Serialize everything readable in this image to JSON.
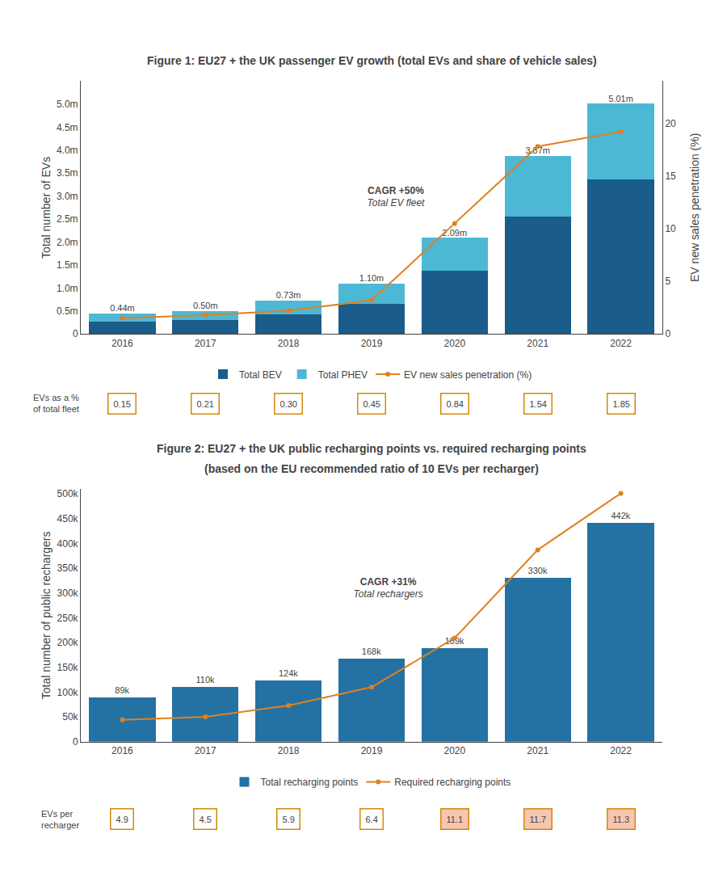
{
  "chart_data": [
    {
      "type": "bar",
      "title": "Figure 1: EU27 + the UK passenger EV growth (total EVs and share of vehicle sales)",
      "categories": [
        "2016",
        "2017",
        "2018",
        "2019",
        "2020",
        "2021",
        "2022"
      ],
      "stacked": true,
      "grid": false,
      "legend": "bottom",
      "ylabel": "Total number of EVs",
      "y2label": "EV new sales penetration (%)",
      "ylim": [
        0,
        5.5
      ],
      "yticks": [
        0,
        {
          "value": 0.5,
          "label": "0.5m"
        },
        {
          "value": 1.0,
          "label": "1.0m"
        },
        {
          "value": 1.5,
          "label": "1.5m"
        },
        {
          "value": 2.0,
          "label": "2.0m"
        },
        {
          "value": 2.5,
          "label": "2.5m"
        },
        {
          "value": 3.0,
          "label": "3.0m"
        },
        {
          "value": 3.5,
          "label": "3.5m"
        },
        {
          "value": 4.0,
          "label": "4.0m"
        },
        {
          "value": 4.5,
          "label": "4.5m"
        },
        {
          "value": 5.0,
          "label": "5.0m"
        }
      ],
      "y2lim": [
        0,
        24
      ],
      "y2ticks": [
        0,
        5,
        10,
        15,
        20
      ],
      "series": [
        {
          "name": "Total BEV",
          "type": "bar",
          "color": "#1a5c8a",
          "values": [
            0.26,
            0.3,
            0.43,
            0.65,
            1.37,
            2.55,
            3.36
          ]
        },
        {
          "name": "Total PHEV",
          "type": "bar",
          "color": "#4db8d4",
          "values": [
            0.18,
            0.2,
            0.3,
            0.45,
            0.72,
            1.32,
            1.65
          ]
        },
        {
          "name": "EV new sales penetration (%)",
          "type": "line",
          "marker": "circle",
          "axis": "y2",
          "color": "#e08020",
          "values": [
            1.5,
            1.8,
            2.2,
            3.2,
            10.5,
            17.8,
            19.2
          ]
        }
      ],
      "totals": [
        0.44,
        0.5,
        0.73,
        1.1,
        2.09,
        3.87,
        5.01
      ],
      "total_labels": [
        "0.44m",
        "0.50m",
        "0.73m",
        "1.10m",
        "2.09m",
        "3.87m",
        "5.01m"
      ],
      "annotations": [
        {
          "text": "CAGR +50%"
        },
        {
          "text": "Total EV fleet"
        }
      ],
      "row": {
        "label": "EVs as a %\nof total fleet",
        "values": [
          0.15,
          0.21,
          0.3,
          0.45,
          0.84,
          1.54,
          1.85
        ],
        "value_labels": [
          "0.15",
          "0.21",
          "0.30",
          "0.45",
          "0.84",
          "1.54",
          "1.85"
        ],
        "color": "#d4880a",
        "colors": [
          "#ffffff",
          "#ffffff",
          "#ffffff",
          "#ffffff",
          "#ffffff",
          "#ffffff",
          "#ffffff"
        ]
      }
    },
    {
      "type": "bar",
      "title": "Figure 2: EU27 + the UK public recharging points vs. required recharging points",
      "subtitle": "(based on the EU recommended ratio of 10 EVs per recharger)",
      "categories": [
        "2016",
        "2017",
        "2018",
        "2019",
        "2020",
        "2021",
        "2022"
      ],
      "grid": false,
      "legend": "bottom",
      "data_labels": true,
      "ylabel": "Total number of public rechargers",
      "ylim": [
        0,
        510000
      ],
      "yticks": [
        0,
        {
          "value": 50000,
          "label": "50k"
        },
        {
          "value": 100000,
          "label": "100k"
        },
        {
          "value": 150000,
          "label": "150k"
        },
        {
          "value": 200000,
          "label": "200k"
        },
        {
          "value": 250000,
          "label": "250k"
        },
        {
          "value": 300000,
          "label": "300k"
        },
        {
          "value": 350000,
          "label": "350k"
        },
        {
          "value": 400000,
          "label": "400k"
        },
        {
          "value": 450000,
          "label": "450k"
        },
        {
          "value": 500000,
          "label": "500k"
        }
      ],
      "series": [
        {
          "name": "Total recharging points",
          "type": "bar",
          "color": "#2471a3",
          "values": [
            89000,
            110000,
            124000,
            168000,
            189000,
            330000,
            442000
          ],
          "value_labels": [
            "89k",
            "110k",
            "124k",
            "168k",
            "189k",
            "330k",
            "442k"
          ]
        },
        {
          "name": "Required recharging points",
          "type": "line",
          "marker": "circle",
          "color": "#e08020",
          "values": [
            44000,
            50000,
            73000,
            110000,
            209000,
            387000,
            501000
          ]
        }
      ],
      "annotations": [
        {
          "text": "CAGR +31%"
        },
        {
          "text": "Total rechargers"
        }
      ],
      "row": {
        "label": "EVs per\nrecharger",
        "values": [
          4.9,
          4.5,
          5.9,
          6.4,
          11.1,
          11.7,
          11.3
        ],
        "color": "#d4880a",
        "colors": [
          "#ffffff",
          "#ffffff",
          "#ffffff",
          "#ffffff",
          "#f5c6b0",
          "#f5c6b0",
          "#f5c6b0"
        ]
      }
    }
  ]
}
